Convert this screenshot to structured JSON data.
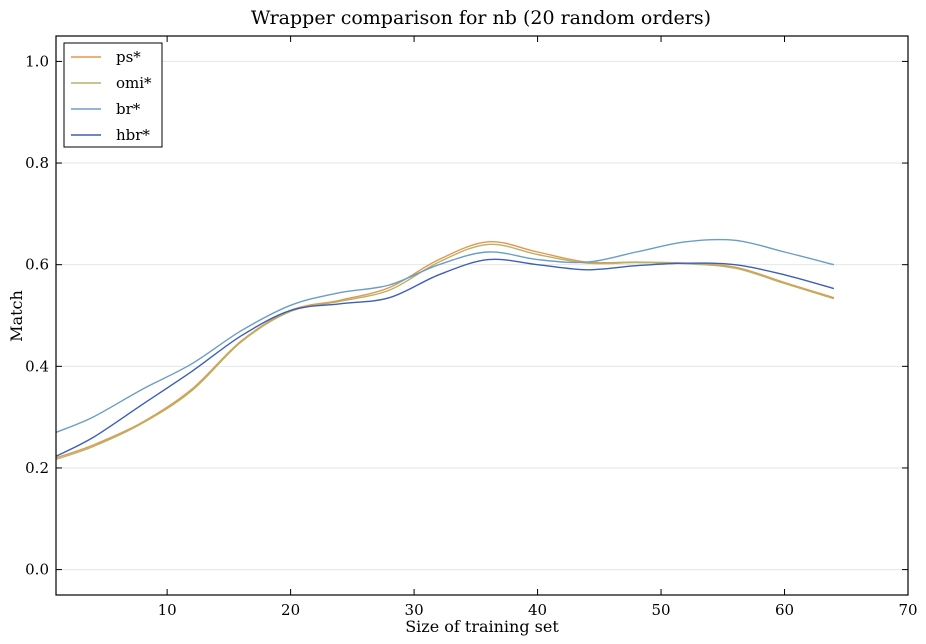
{
  "chart_data": {
    "type": "line",
    "title": "Wrapper comparison for nb (20 random orders)",
    "xlabel": "Size of training set",
    "ylabel": "Match",
    "xlim": [
      1,
      70
    ],
    "ylim": [
      -0.05,
      1.05
    ],
    "xticks": [
      10,
      20,
      30,
      40,
      50,
      60,
      70
    ],
    "yticks": [
      0.0,
      0.2,
      0.4,
      0.6,
      0.8,
      1.0
    ],
    "xtick_labels": [
      "10",
      "20",
      "30",
      "40",
      "50",
      "60",
      "70"
    ],
    "ytick_labels": [
      "0.0",
      "0.2",
      "0.4",
      "0.6",
      "0.8",
      "1.0"
    ],
    "grid": "horizontal",
    "legend_position": "top-left",
    "x": [
      1,
      4,
      8,
      12,
      16,
      20,
      24,
      28,
      32,
      36,
      40,
      44,
      48,
      52,
      56,
      60,
      64
    ],
    "series": [
      {
        "name": "ps*",
        "color": "#e8964a",
        "values": [
          0.22,
          0.245,
          0.29,
          0.355,
          0.45,
          0.51,
          0.53,
          0.555,
          0.61,
          0.645,
          0.625,
          0.605,
          0.605,
          0.603,
          0.595,
          0.565,
          0.535
        ]
      },
      {
        "name": "omi*",
        "color": "#b5b36a",
        "values": [
          0.217,
          0.242,
          0.288,
          0.352,
          0.448,
          0.508,
          0.528,
          0.55,
          0.605,
          0.64,
          0.62,
          0.603,
          0.604,
          0.602,
          0.593,
          0.563,
          0.533
        ]
      },
      {
        "name": "br*",
        "color": "#6a9ec5",
        "values": [
          0.27,
          0.3,
          0.355,
          0.405,
          0.47,
          0.52,
          0.545,
          0.56,
          0.6,
          0.625,
          0.61,
          0.605,
          0.625,
          0.645,
          0.648,
          0.625,
          0.6
        ]
      },
      {
        "name": "hbr*",
        "color": "#3d5fb5",
        "values": [
          0.223,
          0.26,
          0.325,
          0.39,
          0.46,
          0.51,
          0.523,
          0.535,
          0.58,
          0.61,
          0.6,
          0.59,
          0.598,
          0.603,
          0.6,
          0.58,
          0.553
        ]
      }
    ]
  }
}
